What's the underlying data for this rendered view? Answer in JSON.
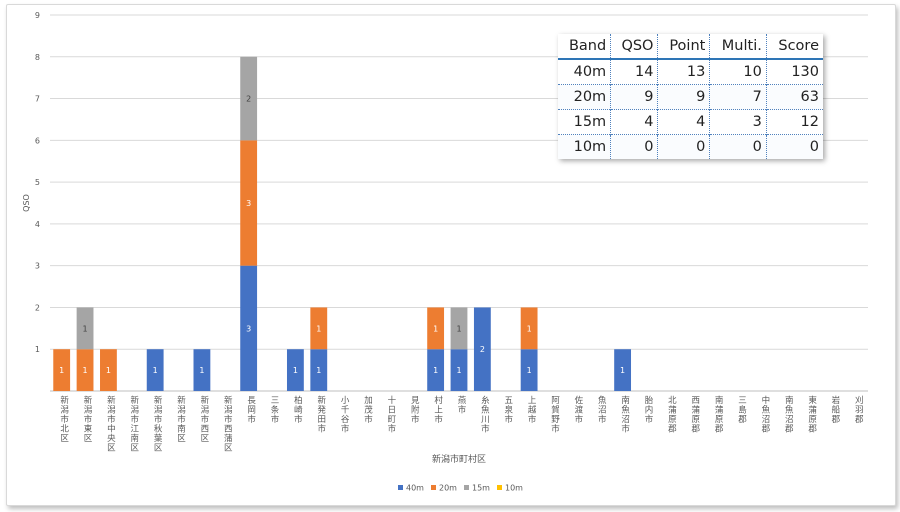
{
  "chart_data": {
    "type": "bar",
    "stacked": true,
    "ylabel": "QSO",
    "xlabel": "新潟市町村区",
    "ylim": [
      0,
      9
    ],
    "yticks": [
      1,
      2,
      3,
      4,
      5,
      6,
      7,
      8,
      9
    ],
    "grid": true,
    "legend_position": "bottom",
    "categories": [
      "新潟市北区",
      "新潟市東区",
      "新潟市中央区",
      "新潟市江南区",
      "新潟市秋葉区",
      "新潟市南区",
      "新潟市西区",
      "新潟市西蒲区",
      "長岡市",
      "三条市",
      "柏崎市",
      "新発田市",
      "小千谷市",
      "加茂市",
      "十日町市",
      "見附市",
      "村上市",
      "燕市",
      "糸魚川市",
      "五泉市",
      "上越市",
      "阿賀野市",
      "佐渡市",
      "魚沼市",
      "南魚沼市",
      "胎内市",
      "北蒲原郡",
      "西蒲原郡",
      "南蒲原郡",
      "三島郡",
      "中魚沼郡",
      "南魚沼郡",
      "東蒲原郡",
      "岩船郡",
      "刈羽郡"
    ],
    "series": [
      {
        "name": "40m",
        "color": "#4472c4",
        "values": [
          0,
          0,
          0,
          0,
          1,
          0,
          1,
          0,
          3,
          0,
          1,
          1,
          0,
          0,
          0,
          0,
          1,
          1,
          2,
          0,
          1,
          0,
          0,
          0,
          1,
          0,
          0,
          0,
          0,
          0,
          0,
          0,
          0,
          0,
          0
        ]
      },
      {
        "name": "20m",
        "color": "#ed7d31",
        "values": [
          1,
          1,
          1,
          0,
          0,
          0,
          0,
          0,
          3,
          0,
          0,
          1,
          0,
          0,
          0,
          0,
          1,
          0,
          0,
          0,
          1,
          0,
          0,
          0,
          0,
          0,
          0,
          0,
          0,
          0,
          0,
          0,
          0,
          0,
          0
        ]
      },
      {
        "name": "15m",
        "color": "#a5a5a5",
        "values": [
          0,
          1,
          0,
          0,
          0,
          0,
          0,
          0,
          2,
          0,
          0,
          0,
          0,
          0,
          0,
          0,
          0,
          1,
          0,
          0,
          0,
          0,
          0,
          0,
          0,
          0,
          0,
          0,
          0,
          0,
          0,
          0,
          0,
          0,
          0
        ]
      },
      {
        "name": "10m",
        "color": "#ffc000",
        "values": [
          0,
          0,
          0,
          0,
          0,
          0,
          0,
          0,
          0,
          0,
          0,
          0,
          0,
          0,
          0,
          0,
          0,
          0,
          0,
          0,
          0,
          0,
          0,
          0,
          0,
          0,
          0,
          0,
          0,
          0,
          0,
          0,
          0,
          0,
          0
        ]
      }
    ]
  },
  "score_table": {
    "headers": [
      "Band",
      "QSO",
      "Point",
      "Multi.",
      "Score"
    ],
    "rows": [
      [
        "40m",
        "14",
        "13",
        "10",
        "130"
      ],
      [
        "20m",
        "9",
        "9",
        "7",
        "63"
      ],
      [
        "15m",
        "4",
        "4",
        "3",
        "12"
      ],
      [
        "10m",
        "0",
        "0",
        "0",
        "0"
      ]
    ]
  }
}
